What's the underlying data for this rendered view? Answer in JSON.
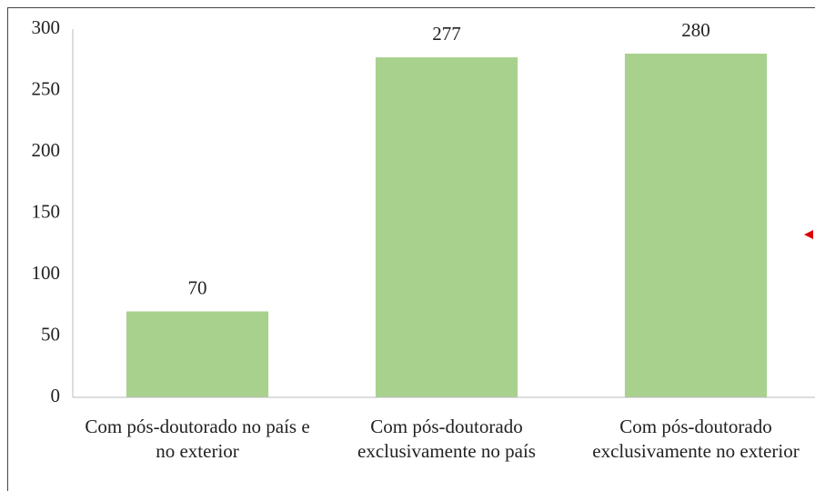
{
  "chart_data": {
    "type": "bar",
    "categories": [
      "Com pós-doutorado no país e no exterior",
      "Com pós-doutorado exclusivamente no país",
      "Com pós-doutorado exclusivamente no exterior"
    ],
    "values": [
      70,
      277,
      280
    ],
    "color": "#a9d18e",
    "ylim": [
      0,
      300
    ],
    "yticks": [
      0,
      50,
      100,
      150,
      200,
      250,
      300
    ],
    "grid": false
  }
}
